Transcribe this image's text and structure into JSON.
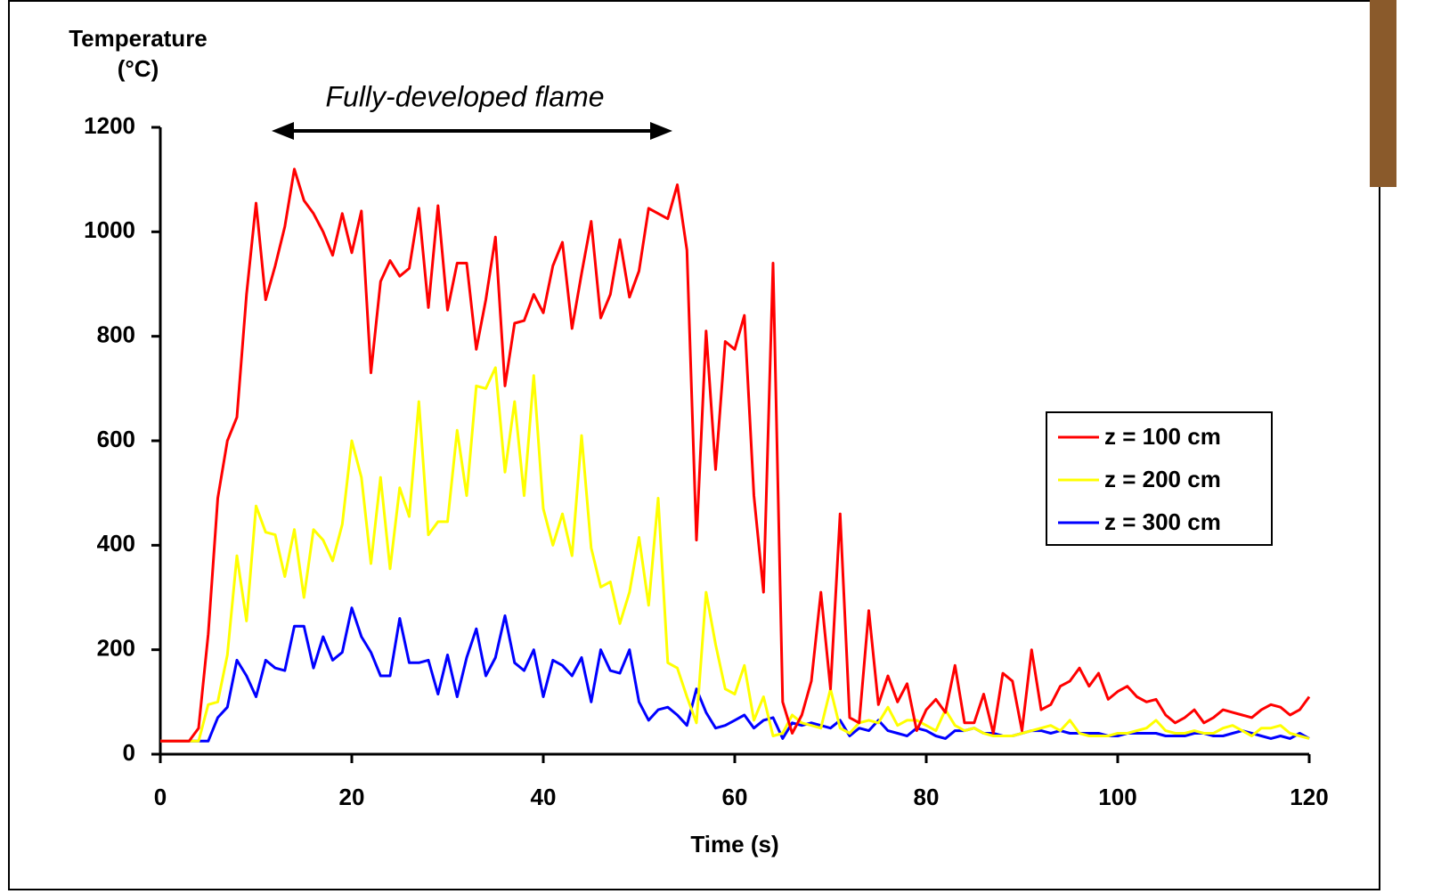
{
  "chart_data": {
    "type": "line",
    "y_label": "Temperature (°C)",
    "x_label": "Time (s)",
    "annotation": "Fully-developed flame",
    "x": [
      0,
      1,
      2,
      3,
      4,
      5,
      6,
      7,
      8,
      9,
      10,
      11,
      12,
      13,
      14,
      15,
      16,
      17,
      18,
      19,
      20,
      21,
      22,
      23,
      24,
      25,
      26,
      27,
      28,
      29,
      30,
      31,
      32,
      33,
      34,
      35,
      36,
      37,
      38,
      39,
      40,
      41,
      42,
      43,
      44,
      45,
      46,
      47,
      48,
      49,
      50,
      51,
      52,
      53,
      54,
      55,
      56,
      57,
      58,
      59,
      60,
      61,
      62,
      63,
      64,
      65,
      66,
      67,
      68,
      69,
      70,
      71,
      72,
      73,
      74,
      75,
      76,
      77,
      78,
      79,
      80,
      81,
      82,
      83,
      84,
      85,
      86,
      87,
      88,
      89,
      90,
      91,
      92,
      93,
      94,
      95,
      96,
      97,
      98,
      99,
      100,
      101,
      102,
      103,
      104,
      105,
      106,
      107,
      108,
      109,
      110,
      111,
      112,
      113,
      114,
      115,
      116,
      117,
      118,
      119,
      120
    ],
    "series": [
      {
        "name": "z = 100 cm",
        "color": "#ff0000",
        "values": [
          25,
          25,
          25,
          25,
          50,
          230,
          490,
          600,
          645,
          880,
          1055,
          870,
          935,
          1010,
          1120,
          1060,
          1035,
          1000,
          955,
          1035,
          960,
          1040,
          730,
          905,
          945,
          915,
          930,
          1045,
          855,
          1050,
          850,
          940,
          940,
          775,
          870,
          990,
          705,
          825,
          830,
          880,
          845,
          935,
          980,
          815,
          920,
          1020,
          835,
          880,
          985,
          875,
          925,
          1045,
          1035,
          1025,
          1090,
          965,
          410,
          810,
          545,
          790,
          775,
          840,
          495,
          310,
          940,
          100,
          40,
          75,
          140,
          310,
          125,
          460,
          70,
          60,
          275,
          95,
          150,
          100,
          135,
          45,
          85,
          105,
          80,
          170,
          60,
          60,
          115,
          40,
          155,
          140,
          45,
          200,
          85,
          95,
          130,
          140,
          165,
          130,
          155,
          105,
          120,
          130,
          110,
          100,
          105,
          75,
          60,
          70,
          85,
          60,
          70,
          85,
          80,
          75,
          70,
          85,
          95,
          90,
          75,
          85,
          110
        ]
      },
      {
        "name": "z = 200 cm",
        "color": "#ffff00",
        "values": [
          25,
          25,
          25,
          25,
          25,
          95,
          100,
          190,
          380,
          255,
          475,
          425,
          420,
          340,
          430,
          300,
          430,
          410,
          370,
          440,
          600,
          530,
          365,
          530,
          355,
          510,
          455,
          675,
          420,
          445,
          445,
          620,
          495,
          705,
          700,
          740,
          540,
          675,
          495,
          725,
          470,
          400,
          460,
          380,
          610,
          395,
          320,
          330,
          250,
          310,
          415,
          285,
          490,
          175,
          165,
          110,
          60,
          310,
          210,
          125,
          115,
          170,
          65,
          110,
          35,
          40,
          75,
          60,
          55,
          50,
          125,
          50,
          40,
          60,
          65,
          60,
          90,
          55,
          65,
          65,
          55,
          45,
          85,
          55,
          45,
          50,
          40,
          35,
          35,
          35,
          40,
          45,
          50,
          55,
          45,
          65,
          40,
          35,
          35,
          35,
          40,
          40,
          45,
          50,
          65,
          45,
          40,
          40,
          45,
          40,
          40,
          50,
          55,
          45,
          35,
          50,
          50,
          55,
          40,
          35,
          30
        ]
      },
      {
        "name": "z = 300 cm",
        "color": "#0000ff",
        "values": [
          25,
          25,
          25,
          25,
          25,
          25,
          70,
          90,
          180,
          150,
          110,
          180,
          165,
          160,
          245,
          245,
          165,
          225,
          180,
          195,
          280,
          225,
          195,
          150,
          150,
          260,
          175,
          175,
          180,
          115,
          190,
          110,
          185,
          240,
          150,
          185,
          265,
          175,
          160,
          200,
          110,
          180,
          170,
          150,
          185,
          100,
          200,
          160,
          155,
          200,
          100,
          65,
          85,
          90,
          75,
          55,
          125,
          80,
          50,
          55,
          65,
          75,
          50,
          65,
          70,
          30,
          60,
          55,
          60,
          55,
          50,
          65,
          35,
          50,
          45,
          65,
          45,
          40,
          35,
          50,
          45,
          35,
          30,
          45,
          45,
          50,
          40,
          40,
          35,
          35,
          40,
          45,
          45,
          40,
          45,
          40,
          40,
          40,
          40,
          35,
          35,
          40,
          40,
          40,
          40,
          35,
          35,
          35,
          40,
          40,
          35,
          35,
          40,
          45,
          40,
          35,
          30,
          35,
          30,
          40,
          30
        ]
      }
    ],
    "xlim": [
      0,
      120
    ],
    "xticks": [
      0,
      20,
      40,
      60,
      80,
      100,
      120
    ],
    "ylim": [
      0,
      1200
    ],
    "yticks": [
      0,
      200,
      400,
      600,
      800,
      1000,
      1200
    ],
    "grid": false,
    "legend": "right"
  }
}
